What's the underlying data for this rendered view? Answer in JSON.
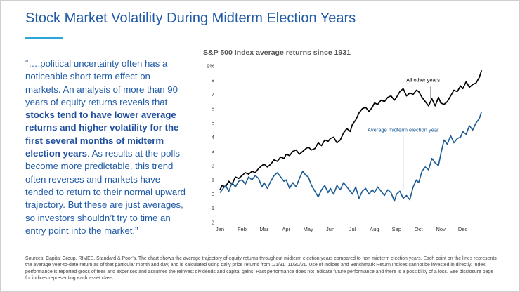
{
  "page": {
    "title": "Stock Market Volatility During Midterm Election Years"
  },
  "quote": {
    "part1": "“….political uncertainty often has a noticeable short-term effect on markets. An analysis of more than 90 years of equity returns reveals that ",
    "bold": "stocks tend to have lower average returns and higher volatility for the first several months of midterm election years",
    "part2": ". As results at the polls become more predictable, this trend often reverses and markets have tended to return to their normal upward trajectory. But these are just averages, so investors shouldn’t try to time an entry point into the market.”"
  },
  "sources": "Sources: Capital Group, RIMES, Standard & Poor’s. The chart shows the average trajectory of equity returns throughout midterm election years compared to non-midterm election years. Each point on the lines represents the average year-to-date return as of that particular month and day, and is calculated using daily price returns from 1/1/31–11/30/21. Use of Indices and Benchmark Return Indices cannot be invested in directly. Index performance is reported gross of fees and expenses and assumes the reinvest dividends and capital gains. Past performance does not indicate future performance and there is a possibility of a loss. See disclosure page for indices representing each asset class.",
  "chart_data": {
    "type": "line",
    "title": "S&P 500 Index average returns since 1931",
    "xlabel": "",
    "ylabel": "",
    "x_ticks": [
      "Jan",
      "Feb",
      "Mar",
      "Apr",
      "May",
      "Jun",
      "Jul",
      "Aug",
      "Sep",
      "Oct",
      "Nov",
      "Dec"
    ],
    "y_ticks": [
      "9%",
      "8",
      "7",
      "6",
      "5",
      "4",
      "3",
      "2",
      "1",
      "0",
      "-1",
      "-2"
    ],
    "ylim": [
      -2,
      9
    ],
    "grid": false,
    "series": [
      {
        "name": "All other years",
        "color": "#000000",
        "x": [
          0,
          0.1,
          0.25,
          0.4,
          0.55,
          0.7,
          0.85,
          1,
          1.15,
          1.3,
          1.45,
          1.6,
          1.75,
          1.9,
          2,
          2.15,
          2.3,
          2.45,
          2.6,
          2.75,
          2.9,
          3,
          3.15,
          3.3,
          3.45,
          3.6,
          3.75,
          3.9,
          4,
          4.15,
          4.3,
          4.45,
          4.6,
          4.75,
          4.9,
          5,
          5.15,
          5.3,
          5.45,
          5.6,
          5.75,
          5.9,
          6,
          6.15,
          6.3,
          6.45,
          6.6,
          6.75,
          6.9,
          7,
          7.15,
          7.3,
          7.45,
          7.6,
          7.75,
          7.9,
          8,
          8.15,
          8.3,
          8.45,
          8.6,
          8.75,
          8.9,
          9,
          9.15,
          9.3,
          9.45,
          9.6,
          9.75,
          9.9,
          10,
          10.15,
          10.3,
          10.45,
          10.6,
          10.75,
          10.9,
          11,
          11.15,
          11.3,
          11.45,
          11.6,
          11.75,
          11.85
        ],
        "y": [
          0.3,
          0.6,
          0.5,
          0.9,
          0.7,
          1.2,
          1.1,
          1.3,
          1.5,
          1.4,
          1.6,
          1.5,
          1.8,
          2.0,
          2.1,
          1.9,
          2.1,
          2.4,
          2.3,
          2.6,
          2.5,
          2.8,
          2.7,
          3.0,
          3.1,
          2.8,
          3.0,
          3.2,
          3.3,
          3.1,
          3.2,
          3.6,
          3.4,
          3.8,
          3.7,
          3.9,
          4.0,
          3.6,
          3.8,
          4.3,
          4.6,
          4.4,
          4.9,
          5.2,
          5.7,
          6.0,
          6.1,
          5.8,
          6.1,
          6.4,
          6.3,
          6.6,
          6.5,
          6.8,
          6.9,
          6.6,
          6.8,
          7.2,
          7.4,
          6.9,
          7.1,
          7.0,
          7.3,
          7.2,
          6.8,
          6.5,
          6.2,
          6.7,
          6.2,
          6.8,
          6.4,
          6.3,
          6.5,
          6.9,
          7.3,
          7.2,
          7.6,
          7.4,
          7.9,
          7.5,
          7.7,
          7.8,
          8.2,
          8.7
        ]
      },
      {
        "name": "Average midterm election year",
        "color": "#1b5b94",
        "x": [
          0,
          0.1,
          0.25,
          0.4,
          0.55,
          0.7,
          0.85,
          1,
          1.15,
          1.3,
          1.45,
          1.6,
          1.75,
          1.9,
          2,
          2.15,
          2.3,
          2.45,
          2.6,
          2.75,
          2.9,
          3,
          3.15,
          3.3,
          3.45,
          3.6,
          3.75,
          3.9,
          4,
          4.15,
          4.3,
          4.45,
          4.6,
          4.75,
          4.9,
          5,
          5.15,
          5.3,
          5.45,
          5.6,
          5.75,
          5.9,
          6,
          6.15,
          6.3,
          6.45,
          6.6,
          6.75,
          6.9,
          7,
          7.15,
          7.3,
          7.45,
          7.6,
          7.75,
          7.9,
          8,
          8.15,
          8.3,
          8.45,
          8.6,
          8.75,
          8.9,
          9,
          9.15,
          9.3,
          9.45,
          9.6,
          9.75,
          9.9,
          10,
          10.15,
          10.3,
          10.45,
          10.6,
          10.75,
          10.9,
          11,
          11.15,
          11.3,
          11.45,
          11.6,
          11.75,
          11.85
        ],
        "y": [
          0.1,
          0.3,
          0.6,
          0.2,
          0.8,
          0.5,
          0.9,
          1.0,
          0.7,
          1.2,
          1.0,
          1.3,
          1.1,
          0.5,
          0.8,
          0.4,
          0.9,
          1.3,
          1.5,
          1.2,
          0.9,
          1.0,
          0.4,
          0.8,
          0.5,
          1.1,
          1.6,
          1.3,
          1.2,
          0.6,
          0.2,
          -0.2,
          0.3,
          0.6,
          0.1,
          0.4,
          0.0,
          0.6,
          0.3,
          0.8,
          0.5,
          0.2,
          0.0,
          0.5,
          -0.3,
          0.2,
          0.4,
          0.0,
          0.3,
          0.1,
          0.5,
          0.2,
          -0.1,
          0.3,
          0.1,
          -0.5,
          0.0,
          0.2,
          -0.3,
          -0.1,
          -0.4,
          0.5,
          1.0,
          0.8,
          1.6,
          1.9,
          1.7,
          2.5,
          2.2,
          2.0,
          2.8,
          3.8,
          3.5,
          4.1,
          3.6,
          3.9,
          4.0,
          4.4,
          4.2,
          4.8,
          4.5,
          5.0,
          5.3,
          5.8
        ]
      }
    ],
    "annotations": [
      {
        "text": "All other years",
        "series": 0
      },
      {
        "text": "Average midterm election year",
        "series": 1
      }
    ]
  }
}
